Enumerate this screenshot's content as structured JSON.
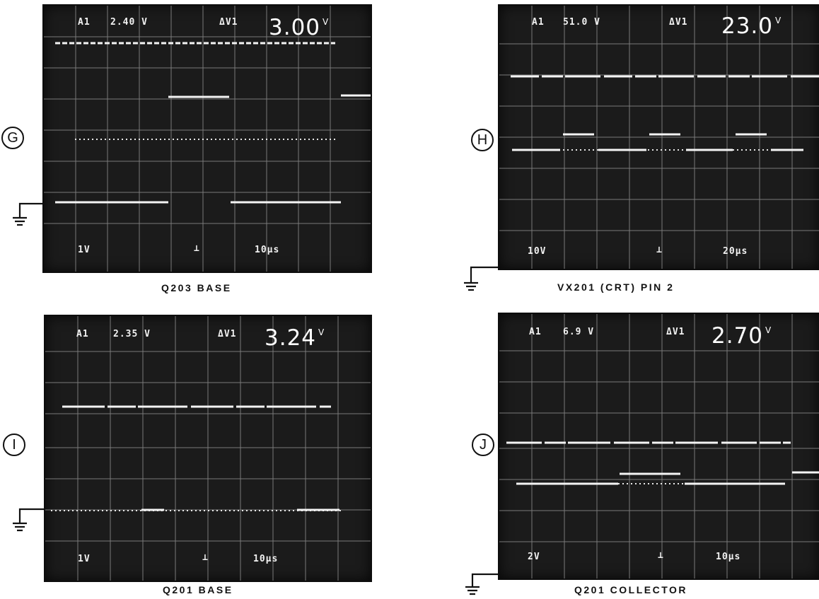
{
  "colors": {
    "screen_bg": "#1b1b1b",
    "trace": "#f4f4f4",
    "grid": "#7a7a7a"
  },
  "panels": [
    {
      "id": "G",
      "label": "G",
      "caption": "Q203 BASE",
      "channel": "A1",
      "cursor_level": "2.40 V",
      "delta_label": "ΔV1",
      "delta_value": "3.00",
      "delta_unit": "V",
      "volts_div": "1V",
      "time_div": "10μs",
      "trigger_icon": "trigger-marker-icon"
    },
    {
      "id": "H",
      "label": "H",
      "caption": "VX201 (CRT) PIN 2",
      "channel": "A1",
      "cursor_level": "51.0 V",
      "delta_label": "ΔV1",
      "delta_value": "23.0",
      "delta_unit": "V",
      "volts_div": "10V",
      "time_div": "20μs",
      "trigger_icon": "trigger-marker-icon"
    },
    {
      "id": "I",
      "label": "I",
      "caption": "Q201 BASE",
      "channel": "A1",
      "cursor_level": "2.35 V",
      "delta_label": "ΔV1",
      "delta_value": "3.24",
      "delta_unit": "V",
      "volts_div": "1V",
      "time_div": "10μs",
      "trigger_icon": "trigger-marker-icon"
    },
    {
      "id": "J",
      "label": "J",
      "caption": "Q201 COLLECTOR",
      "channel": "A1",
      "cursor_level": "6.9 V",
      "delta_label": "ΔV1",
      "delta_value": "2.70",
      "delta_unit": "V",
      "volts_div": "2V",
      "time_div": "10μs",
      "trigger_icon": "trigger-marker-icon"
    }
  ]
}
